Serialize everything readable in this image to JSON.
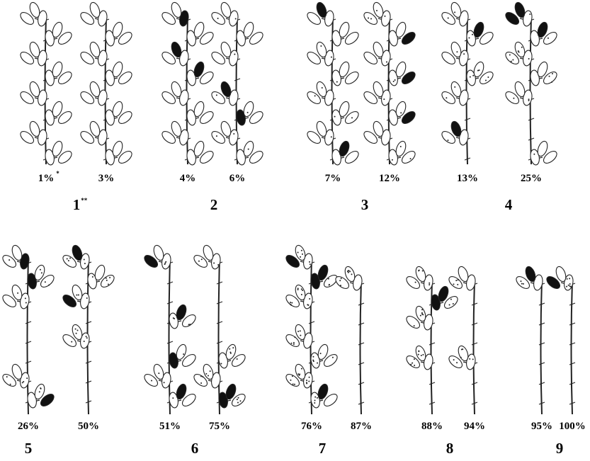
{
  "groups": [
    {
      "score": "1",
      "note": "**",
      "plants": [
        {
          "label": "1%",
          "note": "*"
        },
        {
          "label": "3%"
        }
      ]
    },
    {
      "score": "2",
      "plants": [
        {
          "label": "4%"
        },
        {
          "label": "6%"
        }
      ]
    },
    {
      "score": "3",
      "plants": [
        {
          "label": "7%"
        },
        {
          "label": "12%"
        }
      ]
    },
    {
      "score": "4",
      "plants": [
        {
          "label": "13%"
        },
        {
          "label": "25%"
        }
      ]
    },
    {
      "score": "5",
      "plants": [
        {
          "label": "26%"
        },
        {
          "label": "50%"
        }
      ]
    },
    {
      "score": "6",
      "plants": [
        {
          "label": "51%"
        },
        {
          "label": "75%"
        }
      ]
    },
    {
      "score": "7",
      "plants": [
        {
          "label": "76%"
        },
        {
          "label": "87%"
        }
      ]
    },
    {
      "score": "8",
      "plants": [
        {
          "label": "88%"
        },
        {
          "label": "94%"
        }
      ]
    },
    {
      "score": "9",
      "plants": [
        {
          "label": "95%"
        },
        {
          "label": "100%"
        }
      ]
    }
  ]
}
